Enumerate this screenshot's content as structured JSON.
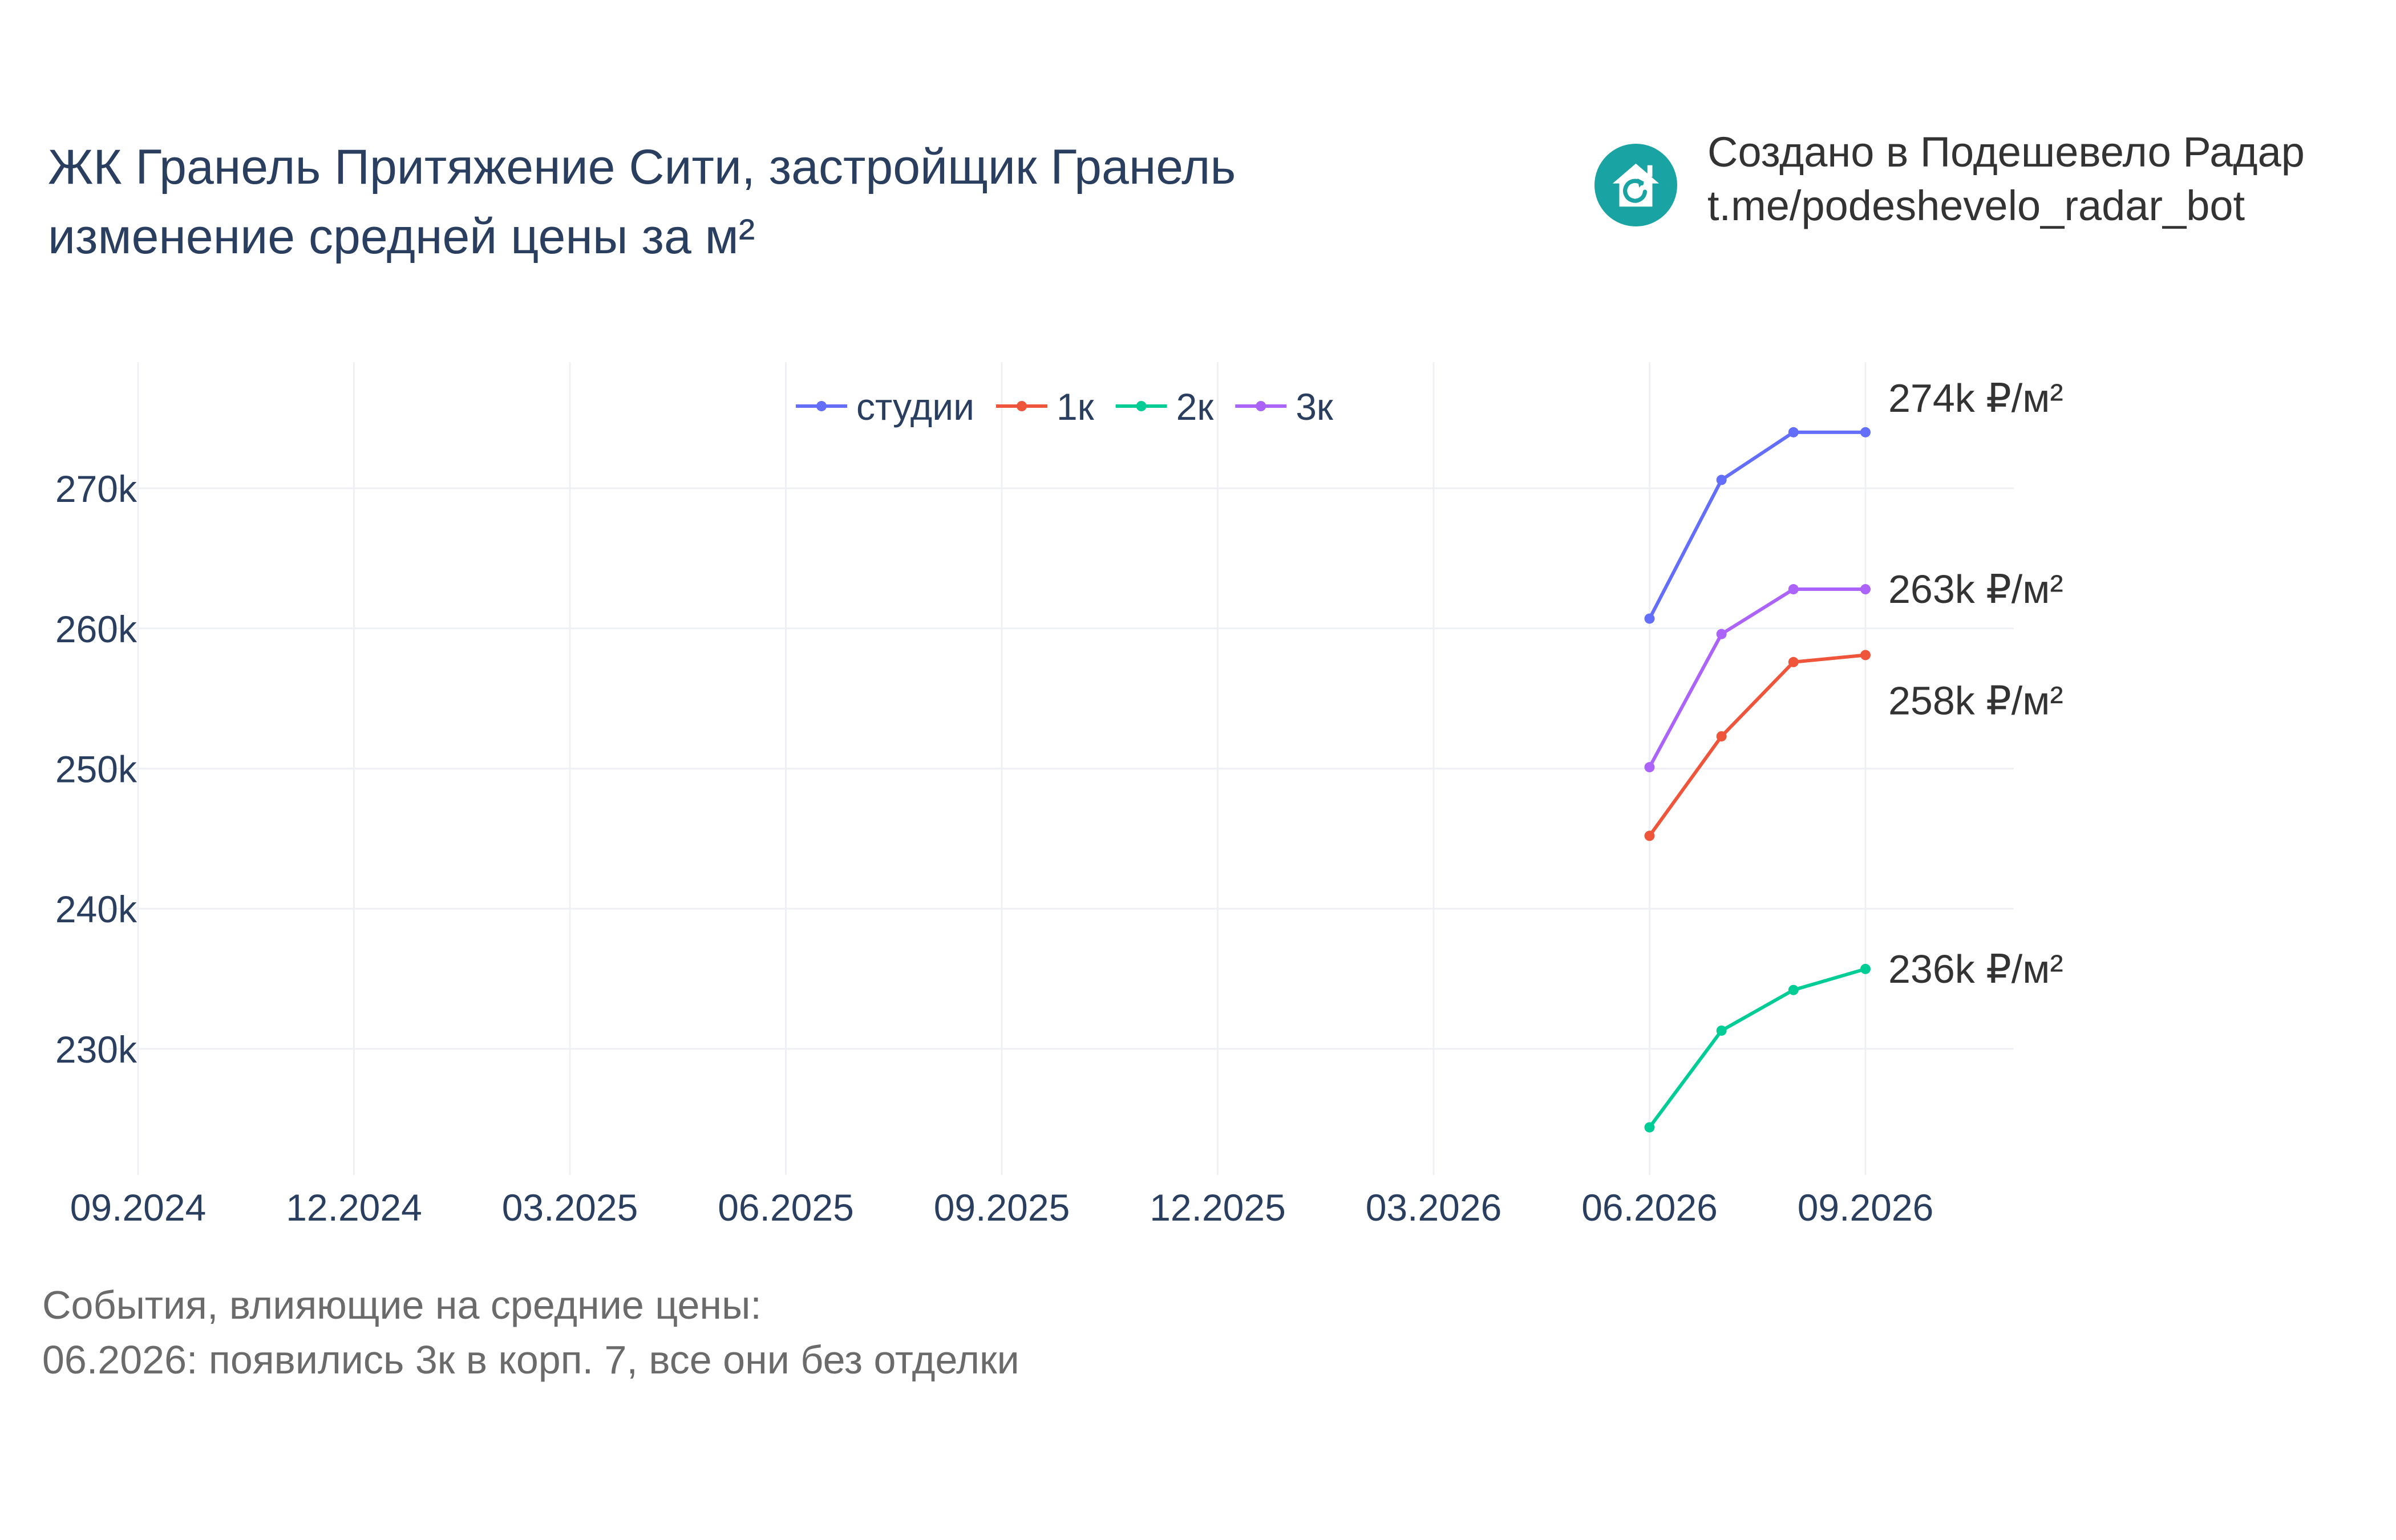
{
  "title": {
    "line1": "ЖК Гранель Притяжение Сити, застройщик Гранель",
    "line2": "изменение средней цены за м²"
  },
  "brand": {
    "icon": "house-refresh-icon",
    "line1": "Создано в Подешевело Радар",
    "line2": "t.me/podeshevelo_radar_bot",
    "color": "#1aa3a3"
  },
  "events": {
    "header": "События, влияющие на средние цены:",
    "items": [
      "06.2026: появились 3к в корп. 7, все они без отделки"
    ]
  },
  "chart_data": {
    "type": "line",
    "title": "",
    "xlabel": "",
    "ylabel": "",
    "x_tick_labels": [
      "09.2024",
      "12.2024",
      "03.2025",
      "06.2025",
      "09.2025",
      "12.2025",
      "03.2026",
      "06.2026",
      "09.2026"
    ],
    "x": [
      "06.2026",
      "07.2026",
      "08.2026",
      "09.2026"
    ],
    "y_ticks": [
      230000,
      240000,
      250000,
      260000,
      270000
    ],
    "y_tick_labels": [
      "230k",
      "240k",
      "250k",
      "260k",
      "270k"
    ],
    "ylim": [
      221000,
      279000
    ],
    "grid": true,
    "legend_position": "top-center",
    "series": [
      {
        "name": "студии",
        "color": "#636efa",
        "values": [
          260700,
          270600,
          274000,
          274000
        ],
        "end_label": "274k ₽/м²"
      },
      {
        "name": "1к",
        "color": "#ef553b",
        "values": [
          245200,
          252300,
          257600,
          258100
        ],
        "end_label": "258k ₽/м²"
      },
      {
        "name": "2к",
        "color": "#00cc96",
        "values": [
          224400,
          231300,
          234200,
          235700
        ],
        "end_label": "236k ₽/м²"
      },
      {
        "name": "3к",
        "color": "#ab63fa",
        "values": [
          250100,
          259600,
          262800,
          262800
        ],
        "end_label": "263k ₽/м²"
      }
    ]
  }
}
